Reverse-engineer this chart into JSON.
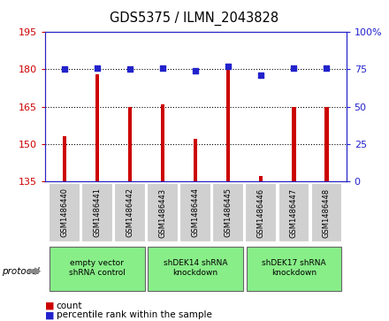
{
  "title": "GDS5375 / ILMN_2043828",
  "samples": [
    "GSM1486440",
    "GSM1486441",
    "GSM1486442",
    "GSM1486443",
    "GSM1486444",
    "GSM1486445",
    "GSM1486446",
    "GSM1486447",
    "GSM1486448"
  ],
  "counts": [
    153,
    178,
    165,
    166,
    152,
    180,
    137,
    165,
    165
  ],
  "percentiles": [
    75,
    76,
    75,
    76,
    74,
    77,
    71,
    76,
    76
  ],
  "ylim_left": [
    135,
    195
  ],
  "ylim_right": [
    0,
    100
  ],
  "yticks_left": [
    135,
    150,
    165,
    180,
    195
  ],
  "yticks_right": [
    0,
    25,
    50,
    75,
    100
  ],
  "bar_color": "#cc0000",
  "dot_color": "#2222cc",
  "plot_bg": "#ffffff",
  "groups": [
    {
      "label": "empty vector\nshRNA control",
      "start": 0,
      "end": 3
    },
    {
      "label": "shDEK14 shRNA\nknockdown",
      "start": 3,
      "end": 6
    },
    {
      "label": "shDEK17 shRNA\nknockdown",
      "start": 6,
      "end": 9
    }
  ],
  "legend_count_label": "count",
  "legend_percentile_label": "percentile rank within the sample",
  "protocol_label": "protocol",
  "group_color": "#88ee88",
  "group_edge_color": "#666666",
  "sample_box_color": "#d0d0d0",
  "sample_box_edge": "#ffffff"
}
